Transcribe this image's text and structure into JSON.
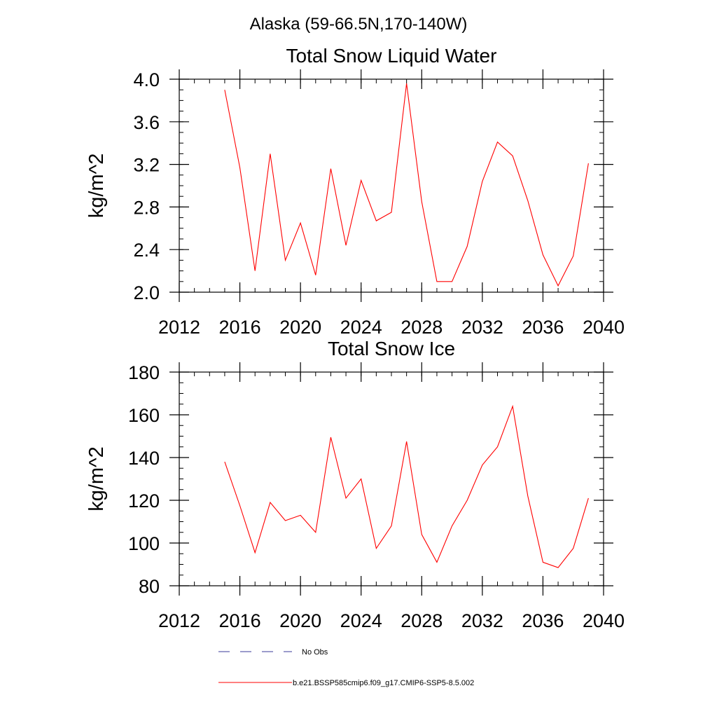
{
  "suptitle": "Alaska (59-66.5N,170-140W)",
  "colors": {
    "model": "#ff0000",
    "obs": "#3a3a9a",
    "axis": "#000000"
  },
  "legend": {
    "placement": "bottom",
    "entries": [
      {
        "label": "No Obs",
        "style": "dashed",
        "color": "#3a3a9a"
      },
      {
        "label": "b.e21.BSSP585cmip6.f09_g17.CMIP6-SSP5-8.5.002",
        "style": "solid",
        "color": "#ff0000"
      }
    ]
  },
  "chart_data": [
    {
      "type": "line",
      "title": "Total Snow Liquid Water",
      "xlabel": "",
      "ylabel": "kg/m^2",
      "xlim": [
        2012,
        2040
      ],
      "ylim": [
        2.0,
        4.0
      ],
      "xticks": [
        2012,
        2016,
        2020,
        2024,
        2028,
        2032,
        2036,
        2040
      ],
      "xtick_labels": [
        "2012",
        "2016",
        "2020",
        "2024",
        "2028",
        "2032",
        "2036",
        "2040"
      ],
      "yticks": [
        2.0,
        2.4,
        2.8,
        3.2,
        3.6,
        4.0
      ],
      "ytick_labels": [
        "2.0",
        "2.4",
        "2.8",
        "3.2",
        "3.6",
        "4.0"
      ],
      "x_minor_step": 1,
      "y_minor_step": 0.1,
      "grid": false,
      "series": [
        {
          "name": "b.e21.BSSP585cmip6.f09_g17.CMIP6-SSP5-8.5.002",
          "color": "#ff0000",
          "x": [
            2015,
            2016,
            2017,
            2018,
            2019,
            2020,
            2021,
            2022,
            2023,
            2024,
            2025,
            2026,
            2027,
            2028,
            2029,
            2030,
            2031,
            2032,
            2033,
            2034,
            2035,
            2036,
            2037,
            2038,
            2039
          ],
          "y": [
            3.9,
            3.17,
            2.2,
            3.3,
            2.3,
            2.65,
            2.16,
            3.16,
            2.44,
            3.05,
            2.67,
            2.75,
            3.96,
            2.85,
            2.1,
            2.1,
            2.43,
            3.04,
            3.41,
            3.28,
            2.86,
            2.35,
            2.06,
            2.34,
            3.21
          ]
        }
      ]
    },
    {
      "type": "line",
      "title": "Total Snow Ice",
      "xlabel": "",
      "ylabel": "kg/m^2",
      "xlim": [
        2012,
        2040
      ],
      "ylim": [
        80,
        180
      ],
      "xticks": [
        2012,
        2016,
        2020,
        2024,
        2028,
        2032,
        2036,
        2040
      ],
      "xtick_labels": [
        "2012",
        "2016",
        "2020",
        "2024",
        "2028",
        "2032",
        "2036",
        "2040"
      ],
      "yticks": [
        80,
        100,
        120,
        140,
        160,
        180
      ],
      "ytick_labels": [
        "80",
        "100",
        "120",
        "140",
        "160",
        "180"
      ],
      "x_minor_step": 1,
      "y_minor_step": 5,
      "grid": false,
      "series": [
        {
          "name": "b.e21.BSSP585cmip6.f09_g17.CMIP6-SSP5-8.5.002",
          "color": "#ff0000",
          "x": [
            2015,
            2016,
            2017,
            2018,
            2019,
            2020,
            2021,
            2022,
            2023,
            2024,
            2025,
            2026,
            2027,
            2028,
            2029,
            2030,
            2031,
            2032,
            2033,
            2034,
            2035,
            2036,
            2037,
            2038,
            2039
          ],
          "y": [
            138.0,
            117.5,
            95.5,
            119.0,
            110.5,
            113.0,
            105.0,
            149.5,
            121.0,
            130.0,
            97.5,
            108.0,
            147.5,
            104.0,
            91.0,
            108.0,
            120.0,
            136.5,
            145.0,
            164.0,
            122.0,
            91.0,
            88.5,
            97.5,
            121.0
          ]
        }
      ]
    }
  ]
}
